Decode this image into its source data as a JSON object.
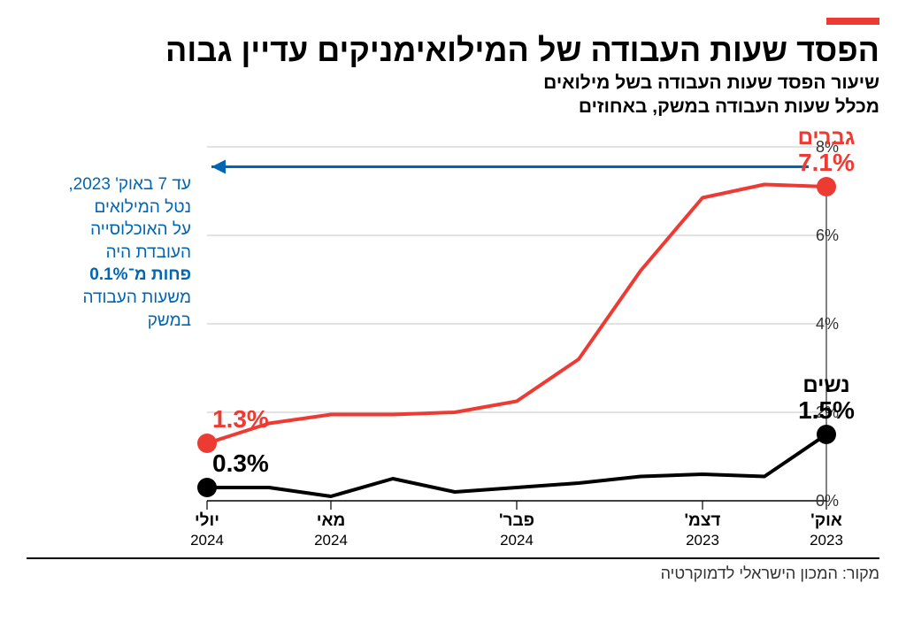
{
  "colors": {
    "red": "#ed3b33",
    "black": "#000000",
    "blue": "#0066b3",
    "grid": "#8a8a8a",
    "background": "#ffffff"
  },
  "title": "הפסד שעות העבודה של המילואימניקים עדיין גבוה",
  "subtitle_l1": "שיעור הפסד שעות העבודה בשל מילואים",
  "subtitle_l2": "מכלל שעות העבודה במשק, באחוזים",
  "chart": {
    "type": "line",
    "ylim": [
      0,
      8
    ],
    "yticks": [
      0,
      2,
      4,
      6,
      8
    ],
    "ytick_suffix": "%",
    "xticks": [
      {
        "x": 0,
        "line1": "אוק'",
        "line2": "2023"
      },
      {
        "x": 2,
        "line1": "דצמ'",
        "line2": "2023"
      },
      {
        "x": 5,
        "line1": "פבר'",
        "line2": "2024"
      },
      {
        "x": 8,
        "line1": "מאי",
        "line2": "2024"
      },
      {
        "x": 10,
        "line1": "יולי",
        "line2": "2024"
      }
    ],
    "x_domain": [
      0,
      10
    ],
    "series": {
      "men": {
        "label": "גברים",
        "color": "#ed3b33",
        "line_width": 4,
        "data": [
          {
            "x": 0,
            "y": 7.1
          },
          {
            "x": 1,
            "y": 7.15
          },
          {
            "x": 2,
            "y": 6.85
          },
          {
            "x": 3,
            "y": 5.2
          },
          {
            "x": 4,
            "y": 3.2
          },
          {
            "x": 5,
            "y": 2.25
          },
          {
            "x": 6,
            "y": 2.0
          },
          {
            "x": 7,
            "y": 1.95
          },
          {
            "x": 8,
            "y": 1.95
          },
          {
            "x": 9,
            "y": 1.75
          },
          {
            "x": 10,
            "y": 1.3
          }
        ],
        "start_marker": {
          "x": 0,
          "y": 7.1,
          "r": 11
        },
        "end_marker": {
          "x": 10,
          "y": 1.3,
          "r": 11
        },
        "start_label": "7.1%",
        "end_label": "1.3%",
        "label_fontsize": 28
      },
      "women": {
        "label": "נשים",
        "color": "#000000",
        "line_width": 4,
        "data": [
          {
            "x": 0,
            "y": 1.5
          },
          {
            "x": 1,
            "y": 0.55
          },
          {
            "x": 2,
            "y": 0.6
          },
          {
            "x": 3,
            "y": 0.55
          },
          {
            "x": 4,
            "y": 0.4
          },
          {
            "x": 5,
            "y": 0.3
          },
          {
            "x": 6,
            "y": 0.2
          },
          {
            "x": 7,
            "y": 0.5
          },
          {
            "x": 8,
            "y": 0.1
          },
          {
            "x": 9,
            "y": 0.3
          },
          {
            "x": 10,
            "y": 0.3
          }
        ],
        "start_marker": {
          "x": 0,
          "y": 1.5,
          "r": 11
        },
        "end_marker": {
          "x": 10,
          "y": 0.3,
          "r": 11
        },
        "start_label": "1.5%",
        "end_label": "0.3%",
        "label_fontsize": 28
      }
    },
    "axis_fontsize": 18,
    "tick_fontsize": 19
  },
  "annotation": {
    "color": "#0066b3",
    "fontsize": 19,
    "lines": [
      {
        "text": "עד 7 באוק' 2023,",
        "bold": false
      },
      {
        "text": "נטל המילואים",
        "bold": false
      },
      {
        "text": "על האוכלוסייה",
        "bold": false
      },
      {
        "text": "העובדת היה",
        "bold": false
      },
      {
        "text": "פחות מ־0.1%",
        "bold": true
      },
      {
        "text": "משעות העבודה",
        "bold": false
      },
      {
        "text": "במשק",
        "bold": false
      }
    ]
  },
  "source": "מקור: המכון הישראלי לדמוקרטיה"
}
